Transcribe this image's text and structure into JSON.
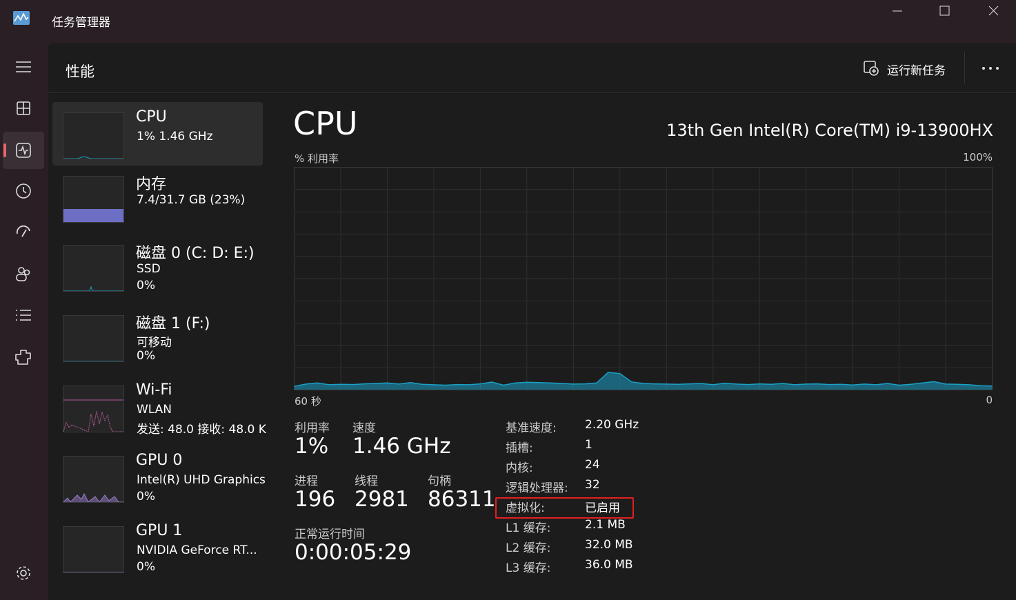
{
  "titlebar": {
    "title": "任务管理器"
  },
  "header": {
    "title": "性能",
    "run_new_task": "运行新任务"
  },
  "sidebar": [
    {
      "name": "CPU",
      "lines": [
        "1%  1.46 GHz"
      ]
    },
    {
      "name": "内存",
      "lines": [
        "7.4/31.7 GB (23%)"
      ]
    },
    {
      "name": "磁盘 0 (C: D: E:)",
      "lines": [
        "SSD",
        "0%"
      ]
    },
    {
      "name": "磁盘 1 (F:)",
      "lines": [
        "可移动",
        "0%"
      ]
    },
    {
      "name": "Wi-Fi",
      "lines": [
        "WLAN",
        "发送: 48.0 接收: 48.0 K"
      ]
    },
    {
      "name": "GPU 0",
      "lines": [
        "Intel(R) UHD Graphics",
        "0%"
      ]
    },
    {
      "name": "GPU 1",
      "lines": [
        "NVIDIA GeForce RT...",
        "0%"
      ]
    }
  ],
  "main": {
    "title": "CPU",
    "model": "13th Gen Intel(R) Core(TM) i9-13900HX"
  },
  "graph": {
    "y_label": "% 利用率",
    "y_max_label": "100%",
    "x_left_label": "60 秒",
    "x_right_label": "0",
    "ylim": [
      0,
      100
    ],
    "values": [
      1.5,
      2.5,
      3.0,
      2.2,
      2.4,
      2.3,
      2.6,
      2.8,
      3.0,
      2.5,
      3.2,
      2.4,
      2.2,
      2.0,
      2.3,
      2.2,
      2.6,
      3.4,
      2.0,
      3.0,
      3.3,
      3.2,
      3.0,
      2.8,
      2.5,
      2.6,
      3.0,
      7.8,
      7.2,
      3.5,
      2.8,
      2.6,
      2.5,
      2.4,
      2.6,
      2.8,
      2.2,
      2.9,
      2.5,
      2.3,
      2.6,
      2.4,
      2.8,
      2.2,
      2.5,
      2.6,
      2.3,
      2.4,
      2.1,
      2.5,
      2.2,
      2.8,
      2.0,
      2.4,
      3.0,
      3.6,
      2.5,
      2.4,
      2.2,
      1.8,
      1.6
    ]
  },
  "stats": [
    {
      "label": "利用率",
      "value": "1%"
    },
    {
      "label": "速度",
      "value": "1.46 GHz"
    },
    {
      "label": "进程",
      "value": "196"
    },
    {
      "label": "线程",
      "value": "2981"
    },
    {
      "label": "句柄",
      "value": "86311"
    },
    {
      "label": "正常运行时间",
      "value": "0:00:05:29"
    }
  ],
  "details": [
    {
      "key": "基准速度:",
      "value": "2.20 GHz"
    },
    {
      "key": "插槽:",
      "value": "1"
    },
    {
      "key": "内核:",
      "value": "24"
    },
    {
      "key": "逻辑处理器:",
      "value": "32"
    },
    {
      "key": "虚拟化:",
      "value": "已启用"
    },
    {
      "key": "L1 缓存:",
      "value": "2.1 MB"
    },
    {
      "key": "L2 缓存:",
      "value": "32.0 MB"
    },
    {
      "key": "L3 缓存:",
      "value": "36.0 MB"
    }
  ]
}
